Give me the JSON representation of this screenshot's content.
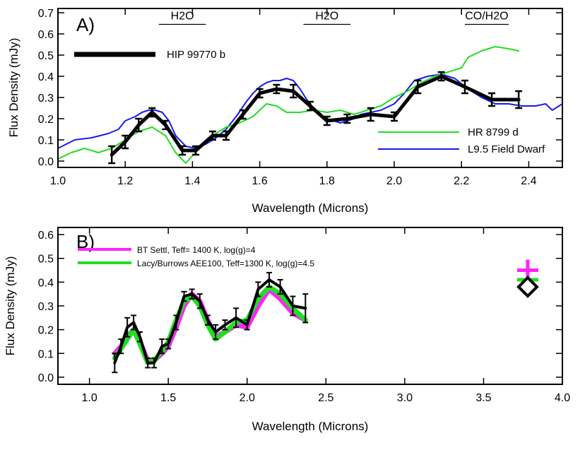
{
  "chart_data": [
    {
      "type": "line",
      "panel_label": "A)",
      "xlabel": "Wavelength (Microns)",
      "ylabel": "Flux Density (mJy)",
      "xlim": [
        1.0,
        2.5
      ],
      "ylim": [
        -0.03,
        0.72
      ],
      "xticks": [
        {
          "v": 1.0,
          "label": "1.0"
        },
        {
          "v": 1.2,
          "label": "1.2"
        },
        {
          "v": 1.4,
          "label": "1.4"
        },
        {
          "v": 1.6,
          "label": "1.6"
        },
        {
          "v": 1.8,
          "label": "1.8"
        },
        {
          "v": 2.0,
          "label": "2.0"
        },
        {
          "v": 2.2,
          "label": "2.2"
        },
        {
          "v": 2.4,
          "label": "2.4"
        }
      ],
      "yticks": [
        {
          "v": 0.0,
          "label": "0.0"
        },
        {
          "v": 0.1,
          "label": "0.1"
        },
        {
          "v": 0.2,
          "label": "0.2"
        },
        {
          "v": 0.3,
          "label": "0.3"
        },
        {
          "v": 0.4,
          "label": "0.4"
        },
        {
          "v": 0.5,
          "label": "0.5"
        },
        {
          "v": 0.6,
          "label": "0.6"
        },
        {
          "v": 0.7,
          "label": "0.7"
        }
      ],
      "bands": [
        {
          "label": "H2O",
          "x0": 1.3,
          "x1": 1.44,
          "y": 0.645
        },
        {
          "label": "H2O",
          "x0": 1.73,
          "x1": 1.87,
          "y": 0.645
        },
        {
          "label": "CO/H2O",
          "x0": 2.21,
          "x1": 2.34,
          "y": 0.645
        }
      ],
      "legend_top": {
        "name": "HIP 99770 b",
        "color": "#000000"
      },
      "legend_bottom": [
        {
          "name": "HR 8799 d",
          "color": "#22dd22"
        },
        {
          "name": "L9.5 Field Dwarf",
          "color": "#1a1aee"
        }
      ],
      "series": [
        {
          "name": "L9.5 Field Dwarf",
          "color": "#1a1aee",
          "x": [
            1.0,
            1.05,
            1.1,
            1.15,
            1.18,
            1.2,
            1.23,
            1.25,
            1.27,
            1.29,
            1.31,
            1.33,
            1.35,
            1.38,
            1.41,
            1.44,
            1.47,
            1.5,
            1.53,
            1.56,
            1.58,
            1.6,
            1.62,
            1.64,
            1.66,
            1.68,
            1.7,
            1.72,
            1.74,
            1.76,
            1.78,
            1.8,
            1.82,
            1.84,
            1.86,
            1.88,
            1.9,
            1.93,
            1.96,
            2.0,
            2.03,
            2.06,
            2.1,
            2.14,
            2.18,
            2.22,
            2.26,
            2.3,
            2.34,
            2.38,
            2.42,
            2.45,
            2.47,
            2.5
          ],
          "values": [
            0.06,
            0.1,
            0.11,
            0.13,
            0.15,
            0.19,
            0.21,
            0.23,
            0.24,
            0.24,
            0.23,
            0.19,
            0.12,
            0.07,
            0.06,
            0.08,
            0.11,
            0.15,
            0.21,
            0.28,
            0.32,
            0.35,
            0.37,
            0.38,
            0.38,
            0.39,
            0.38,
            0.34,
            0.29,
            0.25,
            0.22,
            0.2,
            0.19,
            0.18,
            0.19,
            0.2,
            0.22,
            0.23,
            0.24,
            0.27,
            0.32,
            0.38,
            0.4,
            0.41,
            0.39,
            0.34,
            0.3,
            0.27,
            0.27,
            0.26,
            0.26,
            0.27,
            0.24,
            0.27
          ]
        },
        {
          "name": "HR 8799 d",
          "color": "#22dd22",
          "x": [
            1.0,
            1.04,
            1.08,
            1.12,
            1.16,
            1.2,
            1.24,
            1.28,
            1.32,
            1.35,
            1.38,
            1.42,
            1.46,
            1.5,
            1.54,
            1.58,
            1.62,
            1.65,
            1.68,
            1.72,
            1.76,
            1.8,
            1.84,
            1.88,
            1.92,
            1.96,
            2.0,
            2.04,
            2.08,
            2.12,
            2.16,
            2.2,
            2.22,
            2.26,
            2.3,
            2.34,
            2.37
          ],
          "values": [
            0.01,
            0.04,
            0.06,
            0.04,
            0.06,
            0.1,
            0.14,
            0.16,
            0.12,
            0.04,
            -0.01,
            0.06,
            0.12,
            0.16,
            0.18,
            0.21,
            0.27,
            0.26,
            0.23,
            0.23,
            0.24,
            0.23,
            0.24,
            0.22,
            0.24,
            0.26,
            0.3,
            0.33,
            0.37,
            0.4,
            0.42,
            0.44,
            0.49,
            0.52,
            0.54,
            0.53,
            0.52
          ]
        },
        {
          "name": "HIP 99770 b",
          "color": "#000000",
          "x": [
            1.16,
            1.2,
            1.24,
            1.28,
            1.32,
            1.37,
            1.41,
            1.46,
            1.5,
            1.55,
            1.6,
            1.65,
            1.7,
            1.75,
            1.8,
            1.86,
            1.93,
            2.0,
            2.07,
            2.14,
            2.21,
            2.29,
            2.37
          ],
          "values": [
            0.03,
            0.09,
            0.17,
            0.23,
            0.17,
            0.05,
            0.05,
            0.12,
            0.12,
            0.22,
            0.32,
            0.34,
            0.33,
            0.26,
            0.19,
            0.2,
            0.22,
            0.21,
            0.35,
            0.4,
            0.35,
            0.29,
            0.29
          ],
          "errors": [
            0.04,
            0.03,
            0.03,
            0.02,
            0.02,
            0.02,
            0.02,
            0.02,
            0.02,
            0.02,
            0.02,
            0.02,
            0.03,
            0.02,
            0.02,
            0.02,
            0.03,
            0.02,
            0.03,
            0.02,
            0.03,
            0.03,
            0.04
          ]
        }
      ]
    },
    {
      "type": "line",
      "panel_label": "B)",
      "xlabel": "Wavelength (Microns)",
      "ylabel": "Flux Density (mJy)",
      "xlim": [
        0.8,
        4.0
      ],
      "ylim": [
        -0.03,
        0.63
      ],
      "xticks": [
        {
          "v": 1.0,
          "label": "1.0"
        },
        {
          "v": 1.5,
          "label": "1.5"
        },
        {
          "v": 2.0,
          "label": "2.0"
        },
        {
          "v": 2.5,
          "label": "2.5"
        },
        {
          "v": 3.0,
          "label": "3.0"
        },
        {
          "v": 3.5,
          "label": "3.5"
        },
        {
          "v": 4.0,
          "label": "4.0"
        }
      ],
      "yticks": [
        {
          "v": 0.0,
          "label": "0.0"
        },
        {
          "v": 0.1,
          "label": "0.1"
        },
        {
          "v": 0.2,
          "label": "0.2"
        },
        {
          "v": 0.3,
          "label": "0.3"
        },
        {
          "v": 0.4,
          "label": "0.4"
        },
        {
          "v": 0.5,
          "label": "0.5"
        },
        {
          "v": 0.6,
          "label": "0.6"
        }
      ],
      "legend": [
        {
          "name": "BT Settl, Teff= 1400 K, log(g)=4",
          "color": "#ff22ff"
        },
        {
          "name": "Lacy/Burrows AEE100, Teff=1300 K, log(g)=4.5",
          "color": "#22dd22"
        }
      ],
      "series": [
        {
          "name": "BT Settl, Teff= 1400 K, log(g)=4",
          "color": "#ff22ff",
          "x": [
            1.16,
            1.2,
            1.24,
            1.28,
            1.32,
            1.37,
            1.41,
            1.46,
            1.5,
            1.55,
            1.6,
            1.65,
            1.7,
            1.75,
            1.8,
            1.86,
            1.93,
            2.0,
            2.07,
            2.14,
            2.21,
            2.29,
            2.37
          ],
          "values": [
            0.1,
            0.13,
            0.17,
            0.2,
            0.15,
            0.07,
            0.07,
            0.1,
            0.13,
            0.21,
            0.3,
            0.35,
            0.32,
            0.24,
            0.17,
            0.19,
            0.22,
            0.21,
            0.3,
            0.37,
            0.33,
            0.27,
            0.24
          ]
        },
        {
          "name": "Lacy/Burrows AEE100, Teff=1300 K, log(g)=4.5",
          "color": "#22dd22",
          "x": [
            1.16,
            1.2,
            1.24,
            1.28,
            1.32,
            1.37,
            1.41,
            1.46,
            1.5,
            1.55,
            1.6,
            1.65,
            1.7,
            1.75,
            1.8,
            1.86,
            1.93,
            2.0,
            2.07,
            2.14,
            2.21,
            2.29,
            2.37
          ],
          "values": [
            0.08,
            0.12,
            0.16,
            0.2,
            0.14,
            0.06,
            0.07,
            0.11,
            0.15,
            0.24,
            0.32,
            0.34,
            0.3,
            0.22,
            0.16,
            0.19,
            0.23,
            0.24,
            0.33,
            0.38,
            0.35,
            0.29,
            0.24
          ]
        },
        {
          "name": "HIP 99770 b",
          "color": "#000000",
          "x": [
            1.16,
            1.2,
            1.24,
            1.28,
            1.32,
            1.37,
            1.41,
            1.46,
            1.5,
            1.55,
            1.6,
            1.65,
            1.7,
            1.75,
            1.8,
            1.86,
            1.93,
            2.0,
            2.07,
            2.14,
            2.21,
            2.29,
            2.37
          ],
          "values": [
            0.06,
            0.13,
            0.21,
            0.23,
            0.17,
            0.06,
            0.06,
            0.13,
            0.14,
            0.23,
            0.34,
            0.35,
            0.32,
            0.24,
            0.19,
            0.22,
            0.25,
            0.22,
            0.37,
            0.41,
            0.38,
            0.3,
            0.29
          ],
          "errors": [
            0.04,
            0.03,
            0.04,
            0.03,
            0.02,
            0.02,
            0.02,
            0.03,
            0.02,
            0.03,
            0.02,
            0.02,
            0.03,
            0.02,
            0.03,
            0.02,
            0.04,
            0.02,
            0.03,
            0.03,
            0.03,
            0.04,
            0.06
          ]
        }
      ],
      "photometry_points": [
        {
          "name": "BT Settl model L'",
          "x": 3.78,
          "y": 0.45,
          "marker": "plus",
          "color": "#ff22ff"
        },
        {
          "name": "Lacy/Burrows model L'",
          "x": 3.78,
          "y": 0.41,
          "marker": "dash",
          "color": "#22dd22"
        },
        {
          "name": "HIP 99770 b L'",
          "x": 3.78,
          "y": 0.38,
          "error": 0.04,
          "marker": "diamond",
          "color": "#000000"
        }
      ]
    }
  ]
}
